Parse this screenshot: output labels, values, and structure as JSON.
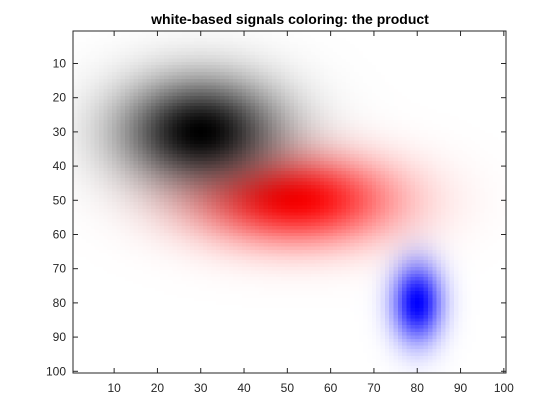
{
  "chart_data": {
    "type": "heatmap",
    "title": "white-based signals coloring: the product",
    "xlabel": "",
    "ylabel": "",
    "xlim": [
      0.5,
      100.5
    ],
    "ylim": [
      0.5,
      100.5
    ],
    "y_direction": "reversed",
    "x_ticks": [
      10,
      20,
      30,
      40,
      50,
      60,
      70,
      80,
      90,
      100
    ],
    "y_ticks": [
      10,
      20,
      30,
      40,
      50,
      60,
      70,
      80,
      90,
      100
    ],
    "grid": false,
    "colors": {
      "background": "#ffffff",
      "black": "#000000",
      "red": "#ff0000",
      "blue": "#0000ff"
    },
    "signals": [
      {
        "name": "black",
        "color": "#000000",
        "center": [
          30,
          30
        ],
        "sigma_x": 13,
        "sigma_y": 11,
        "peak": 1.0
      },
      {
        "name": "red",
        "color": "#ff0000",
        "center": [
          52,
          50
        ],
        "sigma_x": 16,
        "sigma_y": 9,
        "peak": 1.0
      },
      {
        "name": "blue",
        "color": "#0000ff",
        "center": [
          80,
          80
        ],
        "sigma_x": 4,
        "sigma_y": 8,
        "peak": 1.0
      }
    ]
  }
}
